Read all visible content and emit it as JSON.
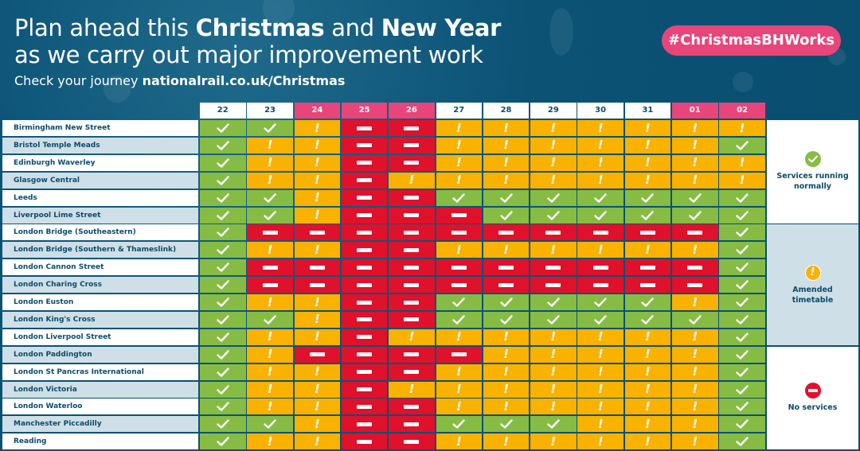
{
  "header": {
    "title_line1": {
      "parts": [
        {
          "text": "Plan ahead this ",
          "bold": false
        },
        {
          "text": "Christmas",
          "bold": true
        },
        {
          "text": " and ",
          "bold": false
        },
        {
          "text": "New Year",
          "bold": true
        }
      ]
    },
    "title_line2": "as we carry out major improvement work",
    "subtitle_prefix": "Check your journey ",
    "subtitle_link": "nationalrail.co.uk/Christmas",
    "hashtag": "#ChristmasBHWorks"
  },
  "colors": {
    "background": "#0a4d6e",
    "normal": "#86bc44",
    "amended": "#f9b200",
    "no_service": "#e0112b",
    "holiday_header": "#e8457b",
    "text_dark": "#0b4c6c"
  },
  "dates": [
    {
      "label": "22",
      "holiday": false
    },
    {
      "label": "23",
      "holiday": false
    },
    {
      "label": "24",
      "holiday": true
    },
    {
      "label": "25",
      "holiday": true
    },
    {
      "label": "26",
      "holiday": true
    },
    {
      "label": "27",
      "holiday": false
    },
    {
      "label": "28",
      "holiday": false
    },
    {
      "label": "29",
      "holiday": false
    },
    {
      "label": "30",
      "holiday": false
    },
    {
      "label": "31",
      "holiday": false
    },
    {
      "label": "01",
      "holiday": true
    },
    {
      "label": "02",
      "holiday": true
    }
  ],
  "status_key": {
    "g": "normal",
    "a": "amended",
    "n": "no_service"
  },
  "stations": [
    {
      "name": "Birmingham New Street",
      "status": [
        "g",
        "g",
        "a",
        "n",
        "n",
        "a",
        "a",
        "a",
        "a",
        "a",
        "a",
        "a"
      ]
    },
    {
      "name": "Bristol Temple Meads",
      "status": [
        "g",
        "a",
        "a",
        "n",
        "n",
        "a",
        "a",
        "a",
        "a",
        "a",
        "a",
        "g"
      ]
    },
    {
      "name": "Edinburgh Waverley",
      "status": [
        "g",
        "a",
        "a",
        "n",
        "n",
        "a",
        "a",
        "a",
        "a",
        "a",
        "a",
        "a"
      ]
    },
    {
      "name": "Glasgow Central",
      "status": [
        "g",
        "a",
        "a",
        "n",
        "a",
        "a",
        "a",
        "a",
        "a",
        "a",
        "a",
        "a"
      ]
    },
    {
      "name": "Leeds",
      "status": [
        "g",
        "g",
        "a",
        "n",
        "n",
        "g",
        "g",
        "g",
        "g",
        "g",
        "g",
        "g"
      ]
    },
    {
      "name": "Liverpool Lime Street",
      "status": [
        "g",
        "g",
        "a",
        "n",
        "n",
        "n",
        "g",
        "g",
        "g",
        "g",
        "g",
        "g"
      ]
    },
    {
      "name": "London Bridge (Southeastern)",
      "status": [
        "g",
        "n",
        "n",
        "n",
        "n",
        "n",
        "n",
        "n",
        "n",
        "n",
        "n",
        "g"
      ]
    },
    {
      "name": "London Bridge (Southern & Thameslink)",
      "status": [
        "g",
        "a",
        "a",
        "n",
        "n",
        "a",
        "a",
        "a",
        "a",
        "a",
        "a",
        "g"
      ]
    },
    {
      "name": "London Cannon Street",
      "status": [
        "g",
        "n",
        "n",
        "n",
        "n",
        "n",
        "n",
        "n",
        "n",
        "n",
        "n",
        "g"
      ]
    },
    {
      "name": "London Charing Cross",
      "status": [
        "g",
        "n",
        "n",
        "n",
        "n",
        "n",
        "n",
        "n",
        "n",
        "n",
        "n",
        "g"
      ]
    },
    {
      "name": "London Euston",
      "status": [
        "g",
        "a",
        "a",
        "n",
        "n",
        "g",
        "g",
        "g",
        "g",
        "g",
        "a",
        "g"
      ]
    },
    {
      "name": "London King's Cross",
      "status": [
        "g",
        "g",
        "a",
        "n",
        "n",
        "g",
        "g",
        "g",
        "g",
        "g",
        "g",
        "g"
      ]
    },
    {
      "name": "London Liverpool Street",
      "status": [
        "g",
        "a",
        "a",
        "n",
        "a",
        "a",
        "a",
        "a",
        "a",
        "a",
        "a",
        "g"
      ]
    },
    {
      "name": "London Paddington",
      "status": [
        "g",
        "a",
        "n",
        "n",
        "n",
        "n",
        "a",
        "a",
        "a",
        "a",
        "a",
        "g"
      ]
    },
    {
      "name": "London St Pancras International",
      "status": [
        "g",
        "a",
        "a",
        "n",
        "n",
        "a",
        "a",
        "a",
        "a",
        "a",
        "a",
        "g"
      ]
    },
    {
      "name": "London Victoria",
      "status": [
        "g",
        "a",
        "a",
        "n",
        "a",
        "a",
        "a",
        "a",
        "a",
        "a",
        "a",
        "g"
      ]
    },
    {
      "name": "London Waterloo",
      "status": [
        "g",
        "a",
        "a",
        "n",
        "n",
        "a",
        "a",
        "a",
        "a",
        "a",
        "a",
        "g"
      ]
    },
    {
      "name": "Manchester Piccadilly",
      "status": [
        "g",
        "g",
        "a",
        "n",
        "n",
        "g",
        "g",
        "g",
        "a",
        "a",
        "a",
        "g"
      ]
    },
    {
      "name": "Reading",
      "status": [
        "g",
        "a",
        "a",
        "n",
        "n",
        "a",
        "a",
        "a",
        "a",
        "a",
        "a",
        "g"
      ]
    }
  ],
  "legend": [
    {
      "key": "g",
      "icon": "check-circle-icon",
      "label_line1": "Services running",
      "label_line2": "normally"
    },
    {
      "key": "a",
      "icon": "exclamation-circle-icon",
      "label_line1": "Amended",
      "label_line2": "timetable"
    },
    {
      "key": "n",
      "icon": "no-entry-icon",
      "label_line1": "No services",
      "label_line2": ""
    }
  ]
}
